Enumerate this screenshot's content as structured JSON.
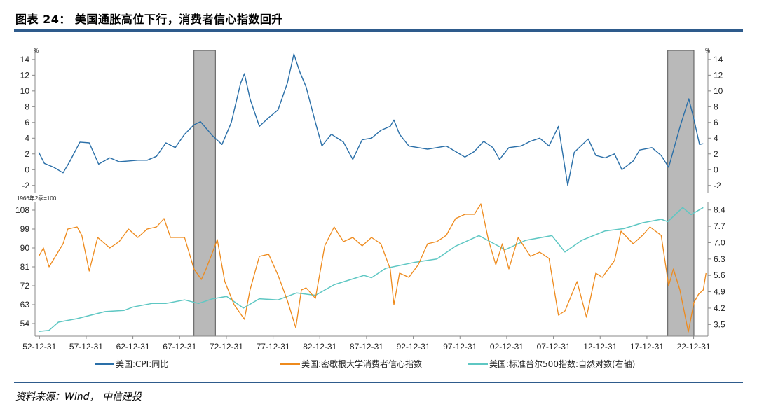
{
  "header": {
    "title": "图表 24：  美国通胀高位下行，消费者信心指数回升",
    "source": "资料来源：Wind， 中信建投"
  },
  "chart_data": [
    {
      "type": "line",
      "panel": "top",
      "unit_label": "%",
      "right_unit_label": "%",
      "ylim": [
        -3,
        15.5
      ],
      "y_ticks": [
        -2,
        0,
        2,
        4,
        6,
        8,
        10,
        12,
        14
      ],
      "series": [
        {
          "name": "美国:CPI:同比",
          "color": "#2a6fa8",
          "points": [
            [
              1952.9,
              2.2
            ],
            [
              1953.5,
              0.8
            ],
            [
              1954.5,
              0.3
            ],
            [
              1955.5,
              -0.4
            ],
            [
              1956.2,
              1.0
            ],
            [
              1957.3,
              3.5
            ],
            [
              1958.3,
              3.4
            ],
            [
              1959.3,
              0.7
            ],
            [
              1960.5,
              1.5
            ],
            [
              1961.5,
              1.0
            ],
            [
              1962.5,
              1.1
            ],
            [
              1963.5,
              1.2
            ],
            [
              1964.5,
              1.2
            ],
            [
              1965.5,
              1.7
            ],
            [
              1966.5,
              3.4
            ],
            [
              1967.5,
              2.8
            ],
            [
              1968.5,
              4.5
            ],
            [
              1969.5,
              5.7
            ],
            [
              1970.2,
              6.1
            ],
            [
              1971.5,
              4.3
            ],
            [
              1972.5,
              3.2
            ],
            [
              1973.5,
              6.0
            ],
            [
              1974.5,
              11.0
            ],
            [
              1974.9,
              12.2
            ],
            [
              1975.5,
              9.0
            ],
            [
              1976.5,
              5.5
            ],
            [
              1977.5,
              6.6
            ],
            [
              1978.5,
              7.6
            ],
            [
              1979.5,
              11.0
            ],
            [
              1980.2,
              14.7
            ],
            [
              1980.8,
              12.5
            ],
            [
              1981.5,
              10.5
            ],
            [
              1982.5,
              6.0
            ],
            [
              1983.2,
              3.0
            ],
            [
              1984.2,
              4.5
            ],
            [
              1985.5,
              3.5
            ],
            [
              1986.5,
              1.3
            ],
            [
              1987.5,
              3.8
            ],
            [
              1988.5,
              4.0
            ],
            [
              1989.5,
              5.0
            ],
            [
              1990.5,
              5.5
            ],
            [
              1990.9,
              6.3
            ],
            [
              1991.5,
              4.5
            ],
            [
              1992.5,
              3.0
            ],
            [
              1993.5,
              2.8
            ],
            [
              1994.5,
              2.6
            ],
            [
              1995.5,
              2.8
            ],
            [
              1996.5,
              3.0
            ],
            [
              1997.5,
              2.3
            ],
            [
              1998.5,
              1.6
            ],
            [
              1999.5,
              2.3
            ],
            [
              2000.5,
              3.6
            ],
            [
              2001.5,
              2.8
            ],
            [
              2002.2,
              1.3
            ],
            [
              2003.2,
              2.8
            ],
            [
              2004.5,
              3.0
            ],
            [
              2005.5,
              3.6
            ],
            [
              2006.5,
              4.0
            ],
            [
              2007.5,
              3.0
            ],
            [
              2008.5,
              5.5
            ],
            [
              2009.5,
              -2.0
            ],
            [
              2010.2,
              2.2
            ],
            [
              2011.7,
              3.9
            ],
            [
              2012.5,
              1.8
            ],
            [
              2013.5,
              1.5
            ],
            [
              2014.5,
              2.0
            ],
            [
              2015.3,
              0.0
            ],
            [
              2016.5,
              1.1
            ],
            [
              2017.2,
              2.5
            ],
            [
              2018.5,
              2.8
            ],
            [
              2019.5,
              1.8
            ],
            [
              2020.3,
              0.3
            ],
            [
              2021.5,
              5.4
            ],
            [
              2022.45,
              9.0
            ],
            [
              2023.0,
              6.4
            ],
            [
              2023.6,
              3.2
            ],
            [
              2024.0,
              3.3
            ]
          ]
        }
      ],
      "shaded_regions": [
        [
          1969.5,
          1971.8
        ],
        [
          2020.2,
          2023.0
        ]
      ]
    },
    {
      "type": "line",
      "panel": "bottom",
      "left_unit_label": "1966年2季=100",
      "ylim": [
        48,
        112
      ],
      "y_ticks_left": [
        54,
        63,
        72,
        81,
        90,
        99,
        108
      ],
      "y2lim": [
        3.0,
        8.75
      ],
      "y_ticks_right": [
        3.5,
        4.2,
        4.9,
        5.6,
        6.3,
        7.0,
        7.7,
        8.4
      ],
      "xlim": [
        1952.5,
        2024.5
      ],
      "x_ticks": [
        "52-12-31",
        "57-12-31",
        "62-12-31",
        "67-12-31",
        "72-12-31",
        "77-12-31",
        "82-12-31",
        "87-12-31",
        "92-12-31",
        "97-12-31",
        "02-12-31",
        "07-12-31",
        "12-12-31",
        "17-12-31",
        "22-12-31"
      ],
      "series": [
        {
          "name": "美国:密歇根大学消费者信心指数",
          "color": "#ee8a1c",
          "axis": "left",
          "points": [
            [
              1952.9,
              86
            ],
            [
              1953.4,
              90
            ],
            [
              1954.0,
              81
            ],
            [
              1955.5,
              92
            ],
            [
              1956.0,
              99
            ],
            [
              1957.0,
              100
            ],
            [
              1957.5,
              96
            ],
            [
              1958.3,
              79
            ],
            [
              1959.2,
              95
            ],
            [
              1960.5,
              90
            ],
            [
              1961.5,
              93
            ],
            [
              1962.5,
              99
            ],
            [
              1963.5,
              95
            ],
            [
              1964.5,
              99
            ],
            [
              1965.5,
              100
            ],
            [
              1966.3,
              104
            ],
            [
              1967.0,
              95
            ],
            [
              1967.5,
              95
            ],
            [
              1968.5,
              95
            ],
            [
              1969.5,
              80
            ],
            [
              1970.3,
              75
            ],
            [
              1970.8,
              80
            ],
            [
              1971.5,
              88
            ],
            [
              1972.0,
              94
            ],
            [
              1972.8,
              74
            ],
            [
              1973.8,
              63
            ],
            [
              1974.9,
              56
            ],
            [
              1975.5,
              70
            ],
            [
              1976.5,
              86
            ],
            [
              1977.5,
              87
            ],
            [
              1978.5,
              77
            ],
            [
              1979.5,
              65
            ],
            [
              1980.4,
              52
            ],
            [
              1981.0,
              70
            ],
            [
              1981.5,
              71
            ],
            [
              1982.5,
              66
            ],
            [
              1983.5,
              91
            ],
            [
              1984.5,
              100
            ],
            [
              1985.5,
              93
            ],
            [
              1986.5,
              95
            ],
            [
              1987.5,
              91
            ],
            [
              1988.5,
              95
            ],
            [
              1989.5,
              92
            ],
            [
              1990.5,
              80
            ],
            [
              1990.9,
              63
            ],
            [
              1991.5,
              78
            ],
            [
              1992.5,
              76
            ],
            [
              1993.5,
              82
            ],
            [
              1994.5,
              92
            ],
            [
              1995.5,
              93
            ],
            [
              1996.5,
              96
            ],
            [
              1997.5,
              104
            ],
            [
              1998.5,
              106
            ],
            [
              1999.5,
              106
            ],
            [
              2000.2,
              111
            ],
            [
              2001.0,
              94
            ],
            [
              2001.8,
              82
            ],
            [
              2002.5,
              92
            ],
            [
              2003.2,
              80
            ],
            [
              2004.2,
              95
            ],
            [
              2005.5,
              86
            ],
            [
              2006.5,
              88
            ],
            [
              2007.5,
              85
            ],
            [
              2008.5,
              58
            ],
            [
              2009.2,
              60
            ],
            [
              2010.5,
              74
            ],
            [
              2011.5,
              57
            ],
            [
              2012.5,
              78
            ],
            [
              2013.2,
              76
            ],
            [
              2014.5,
              84
            ],
            [
              2015.2,
              98
            ],
            [
              2016.5,
              92
            ],
            [
              2017.5,
              96
            ],
            [
              2018.3,
              100
            ],
            [
              2019.5,
              96
            ],
            [
              2020.3,
              72
            ],
            [
              2020.8,
              80
            ],
            [
              2021.5,
              70
            ],
            [
              2022.4,
              50
            ],
            [
              2023.0,
              64
            ],
            [
              2023.5,
              68
            ],
            [
              2024.0,
              70
            ],
            [
              2024.3,
              78
            ]
          ]
        },
        {
          "name": "美国:标准普尔500指数:自然对数(右轴)",
          "color": "#5ec7c3",
          "axis": "right",
          "points": [
            [
              1952.9,
              3.2
            ],
            [
              1954.0,
              3.25
            ],
            [
              1955.0,
              3.6
            ],
            [
              1957.0,
              3.75
            ],
            [
              1958.0,
              3.85
            ],
            [
              1960.0,
              4.05
            ],
            [
              1962.0,
              4.1
            ],
            [
              1963.0,
              4.25
            ],
            [
              1965.0,
              4.4
            ],
            [
              1966.5,
              4.4
            ],
            [
              1968.5,
              4.55
            ],
            [
              1970.0,
              4.4
            ],
            [
              1971.5,
              4.6
            ],
            [
              1973.0,
              4.7
            ],
            [
              1974.8,
              4.2
            ],
            [
              1976.5,
              4.6
            ],
            [
              1978.5,
              4.55
            ],
            [
              1980.5,
              4.85
            ],
            [
              1982.5,
              4.75
            ],
            [
              1984.5,
              5.2
            ],
            [
              1987.7,
              5.6
            ],
            [
              1988.5,
              5.5
            ],
            [
              1990.0,
              5.9
            ],
            [
              1993.0,
              6.15
            ],
            [
              1995.5,
              6.3
            ],
            [
              1997.5,
              6.85
            ],
            [
              2000.0,
              7.3
            ],
            [
              2002.8,
              6.7
            ],
            [
              2005.0,
              7.1
            ],
            [
              2007.8,
              7.3
            ],
            [
              2009.2,
              6.6
            ],
            [
              2011.0,
              7.1
            ],
            [
              2013.5,
              7.5
            ],
            [
              2015.5,
              7.6
            ],
            [
              2017.5,
              7.85
            ],
            [
              2019.5,
              8.0
            ],
            [
              2020.2,
              7.9
            ],
            [
              2021.8,
              8.5
            ],
            [
              2022.7,
              8.2
            ],
            [
              2024.0,
              8.5
            ]
          ]
        }
      ],
      "shaded_regions": [
        [
          1969.5,
          1971.8
        ],
        [
          2020.2,
          2023.0
        ]
      ]
    }
  ],
  "legend": {
    "items": [
      {
        "label": "美国:CPI:同比",
        "color": "#2a6fa8"
      },
      {
        "label": "美国:密歇根大学消费者信心指数",
        "color": "#ee8a1c"
      },
      {
        "label": "美国:标准普尔500指数:自然对数(右轴)",
        "color": "#5ec7c3"
      }
    ]
  }
}
